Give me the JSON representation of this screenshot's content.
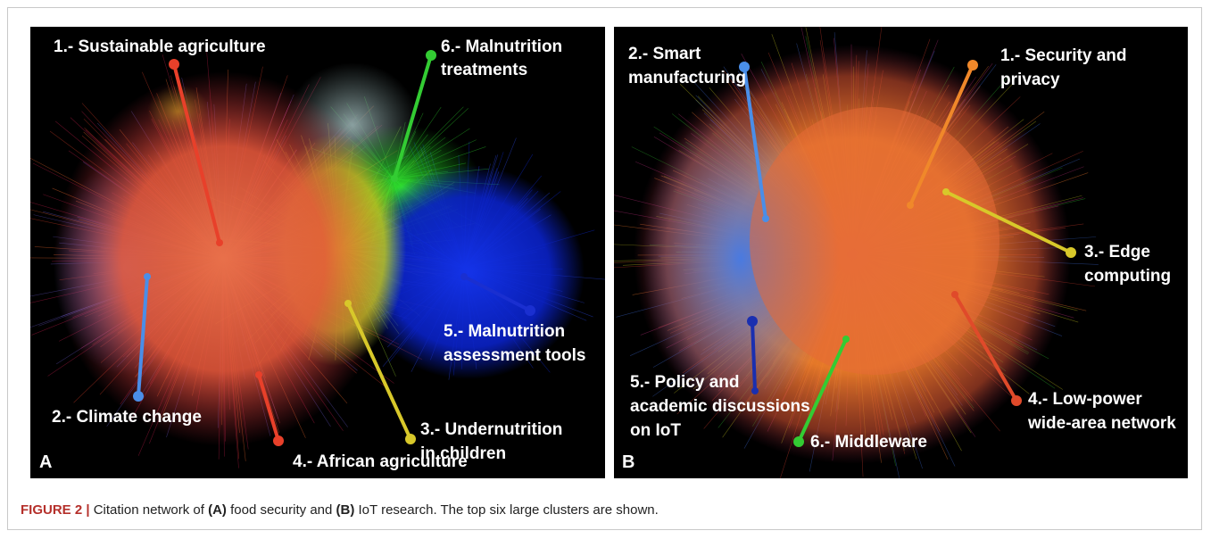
{
  "figure": {
    "panels": [
      {
        "letter": "A",
        "labels": [
          {
            "lines": [
              "1.- Sustainable agriculture"
            ]
          },
          {
            "lines": [
              "6.- Malnutrition",
              "treatments"
            ]
          },
          {
            "lines": [
              "5.- Malnutrition",
              "assessment tools"
            ]
          },
          {
            "lines": [
              "2.- Climate change"
            ]
          },
          {
            "lines": [
              "4.- African agriculture"
            ]
          },
          {
            "lines": [
              "3.- Undernutrition",
              "in children"
            ]
          }
        ]
      },
      {
        "letter": "B",
        "labels": [
          {
            "lines": [
              "2.- Smart",
              "manufacturing"
            ]
          },
          {
            "lines": [
              "1.- Security and",
              "privacy"
            ]
          },
          {
            "lines": [
              "3.- Edge",
              "computing"
            ]
          },
          {
            "lines": [
              "4.- Low-power",
              "wide-area network"
            ]
          },
          {
            "lines": [
              "5.- Policy and",
              "academic discussions",
              "on IoT"
            ]
          },
          {
            "lines": [
              "6.- Middleware"
            ]
          }
        ]
      }
    ],
    "caption": {
      "label": "FIGURE 2 |",
      "parts": [
        " Citation network of ",
        "(A)",
        " food security and ",
        "(B)",
        " IoT research. The top six large clusters are shown."
      ]
    }
  }
}
